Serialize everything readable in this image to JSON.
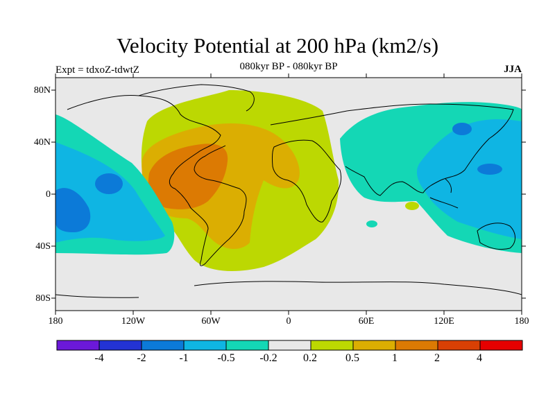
{
  "title": "Velocity Potential at 200 hPa (km2/s)",
  "subtitle": "080kyr BP - 080kyr BP",
  "left_label": "Expt = tdxoZ-tdwtZ",
  "right_label": "JJA",
  "lat_ticks": [
    "80N",
    "40N",
    "0",
    "40S",
    "80S"
  ],
  "lon_ticks": [
    "180",
    "120W",
    "60W",
    "0",
    "60E",
    "120E",
    "180"
  ],
  "colorbar": {
    "colors": [
      "#6b19d9",
      "#2333d4",
      "#0c7ad8",
      "#0fb5e3",
      "#14d7b5",
      "#e8e8e8",
      "#bcd802",
      "#dbae02",
      "#dc7a03",
      "#d94004",
      "#e60000"
    ],
    "labels": [
      "-4",
      "-2",
      "-1",
      "-0.5",
      "-0.2",
      "0.2",
      "0.5",
      "1",
      "2",
      "4"
    ]
  }
}
